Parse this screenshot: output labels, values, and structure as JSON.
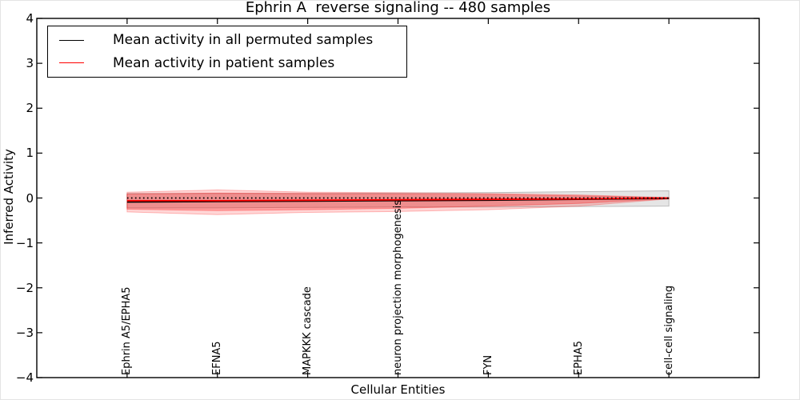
{
  "figure": {
    "title": "Ephrin A  reverse signaling -- 480 samples",
    "xlabel": "Cellular Entities",
    "ylabel": "Inferred Activity"
  },
  "legend": {
    "entries": [
      {
        "label": "Mean activity in all permuted samples",
        "color": "#000000"
      },
      {
        "label": "Mean activity in patient samples",
        "color": "#ff0000"
      }
    ]
  },
  "chart_data": {
    "type": "line",
    "title": "Ephrin A  reverse signaling -- 480 samples",
    "xlabel": "Cellular Entities",
    "ylabel": "Inferred Activity",
    "ylim": [
      -4,
      4
    ],
    "yticks": [
      4,
      3,
      2,
      1,
      0,
      -1,
      -2,
      -3,
      -4
    ],
    "ytick_labels": [
      "4",
      "3",
      "2",
      "1",
      "0",
      "−1",
      "−2",
      "−3",
      "−4"
    ],
    "grid": false,
    "legend_position": "upper left",
    "categories": [
      "Ephrin A5/EPHA5",
      "EFNA5",
      "MAPKKK cascade",
      "neuron projection morphogenesis",
      "FYN",
      "EPHA5",
      "cell-cell signaling"
    ],
    "series": [
      {
        "name": "Mean activity in all permuted samples",
        "color": "#000000",
        "width": 1.6,
        "values": [
          -0.09,
          -0.08,
          -0.07,
          -0.06,
          -0.05,
          -0.03,
          -0.01
        ]
      },
      {
        "name": "Mean activity in patient samples",
        "color": "#ff0000",
        "width": 1.8,
        "values": [
          -0.06,
          -0.06,
          -0.05,
          -0.04,
          -0.03,
          -0.02,
          0.0
        ]
      }
    ],
    "bands": [
      {
        "name": "permuted-samples-std-band",
        "color": "#7f7f7f",
        "opacity": 0.2,
        "edge": "#bbbbbb",
        "upper": [
          0.1,
          0.1,
          0.1,
          0.11,
          0.12,
          0.14,
          0.16
        ],
        "lower": [
          -0.22,
          -0.22,
          -0.21,
          -0.2,
          -0.2,
          -0.19,
          -0.18
        ]
      },
      {
        "name": "patient-samples-outer-band",
        "color": "#ff0000",
        "opacity": 0.16,
        "edge": "rgba(255,0,0,0.25)",
        "upper": [
          0.13,
          0.18,
          0.13,
          0.12,
          0.1,
          0.07,
          0.01
        ],
        "lower": [
          -0.31,
          -0.37,
          -0.32,
          -0.3,
          -0.26,
          -0.18,
          -0.02
        ]
      },
      {
        "name": "patient-samples-inner-band",
        "color": "#ff0000",
        "opacity": 0.26,
        "edge": "rgba(255,0,0,0.3)",
        "upper": [
          0.09,
          0.11,
          0.1,
          0.09,
          0.08,
          0.05,
          0.01
        ],
        "lower": [
          -0.25,
          -0.28,
          -0.26,
          -0.23,
          -0.18,
          -0.12,
          -0.02
        ]
      }
    ],
    "zero_line": {
      "value": 0,
      "style": "dotted",
      "color": "#000000"
    }
  }
}
